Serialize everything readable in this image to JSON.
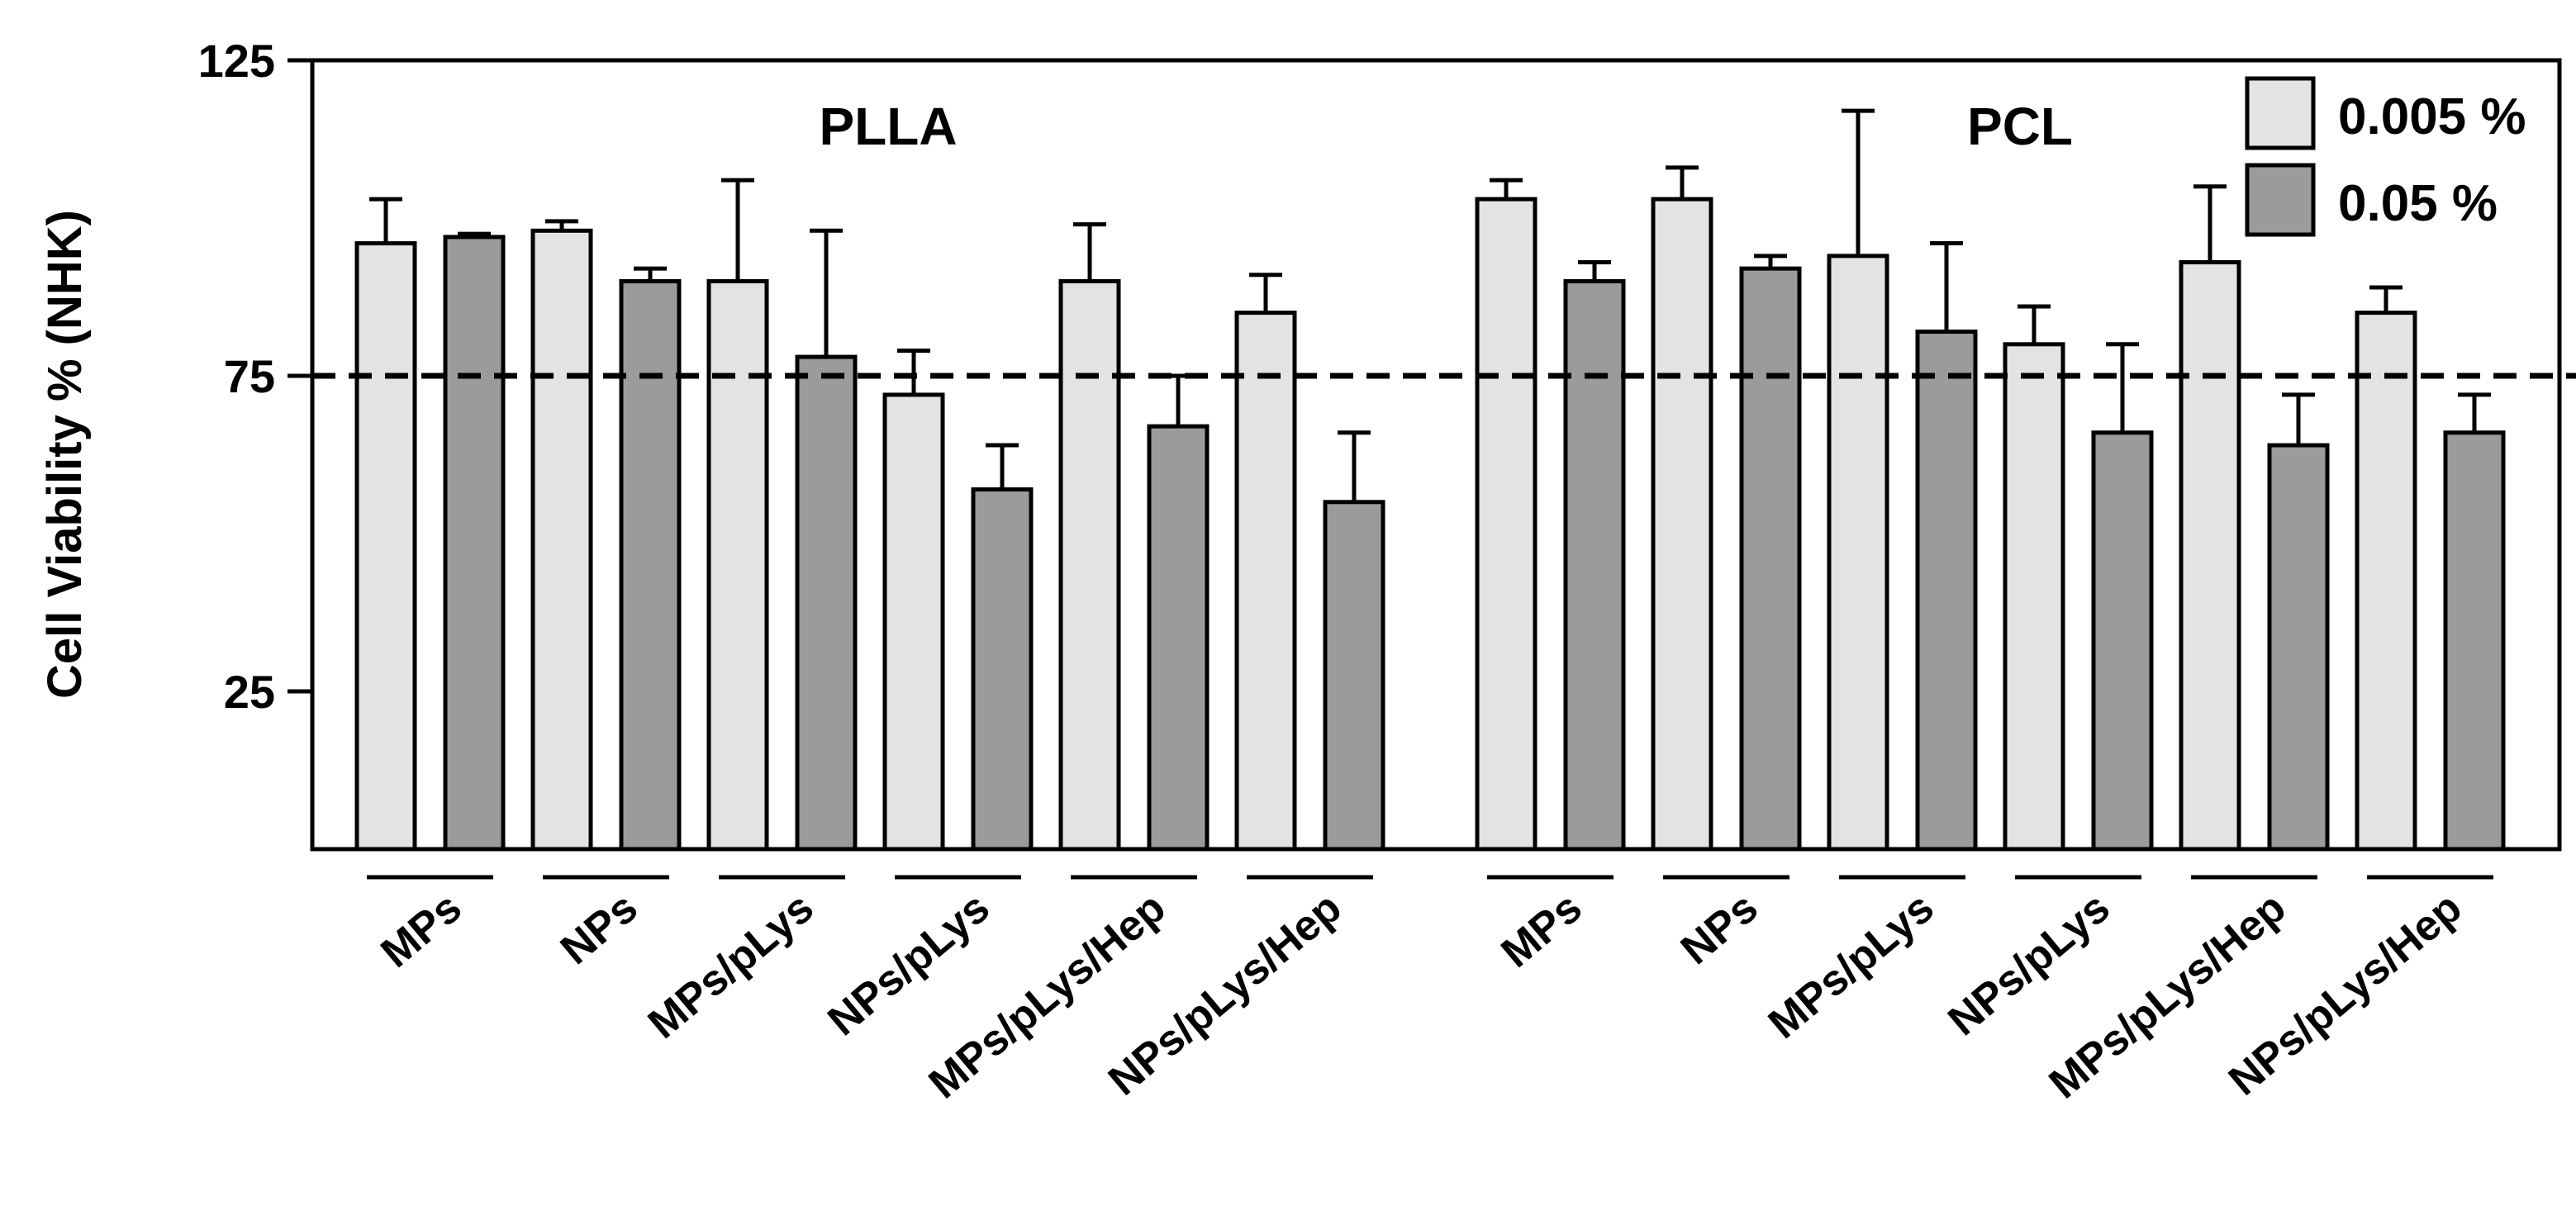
{
  "chart_data": {
    "type": "bar",
    "ylabel": "Cell Viability % (NHK)",
    "y_ticks": [
      25,
      75,
      125
    ],
    "ylim": [
      0,
      125
    ],
    "reference_line": 75,
    "groups": [
      {
        "label": "PLLA",
        "categories": [
          "MPs",
          "NPs",
          "MPs/pLys",
          "NPs/pLys",
          "MPs/pLys/Hep",
          "NPs/pLys/Hep"
        ],
        "series": [
          {
            "name": "0.005 %",
            "values": [
              96,
              98,
              90,
              72,
              90,
              85
            ],
            "errors": [
              7,
              1.5,
              16,
              7,
              9,
              6
            ]
          },
          {
            "name": "0.05 %",
            "values": [
              97,
              90,
              78,
              57,
              67,
              55
            ],
            "errors": [
              0.5,
              2,
              20,
              7,
              8,
              11
            ]
          }
        ]
      },
      {
        "label": "PCL",
        "categories": [
          "MPs",
          "NPs",
          "MPs/pLys",
          "NPs/pLys",
          "MPs/pLys/Hep",
          "NPs/pLys/Hep"
        ],
        "series": [
          {
            "name": "0.005 %",
            "values": [
              103,
              103,
              94,
              80,
              93,
              85
            ],
            "errors": [
              3,
              5,
              23,
              6,
              12,
              4
            ]
          },
          {
            "name": "0.05 %",
            "values": [
              90,
              92,
              82,
              66,
              64,
              66
            ],
            "errors": [
              3,
              2,
              14,
              14,
              8,
              6
            ]
          }
        ]
      }
    ],
    "legend": {
      "position": "top-right",
      "entries": [
        {
          "name": "0.005 %",
          "color": "#e3e3e3"
        },
        {
          "name": "0.05 %",
          "color": "#9b9b9b"
        }
      ]
    }
  }
}
